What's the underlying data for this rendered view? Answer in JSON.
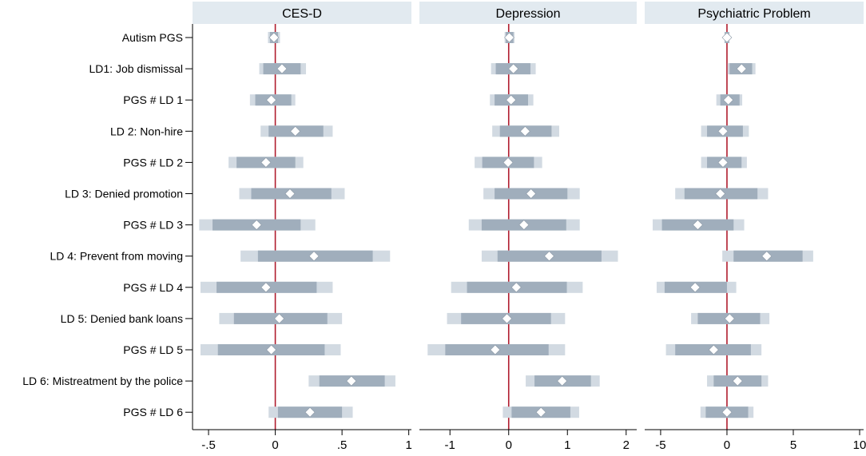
{
  "chart_data": {
    "type": "coefficient-plot",
    "colors": {
      "plot_background": "#ffffff",
      "panel_header": "#e2eaf0",
      "outer_background": "#ffffff",
      "ci_95": "#d2dae2",
      "ci_90": "#a0aebc",
      "marker": "#ffffff",
      "marker_stroke": "#8c99a6",
      "zero_line": "#b01c2e",
      "text": "#000000"
    },
    "rows": [
      "Autism PGS",
      "LD1: Job dismissal",
      "PGS # LD 1",
      "LD 2: Non-hire",
      "PGS # LD 2",
      "LD 3: Denied promotion",
      "PGS # LD 3",
      "LD 4: Prevent from moving",
      "PGS # LD 4",
      "LD 5: Denied bank loans",
      "PGS # LD 5",
      "LD 6: Mistreatment by the police",
      "PGS # LD 6"
    ],
    "panels": [
      {
        "title": "CES-D",
        "xlim": [
          -0.62,
          1.02
        ],
        "ticks": [
          -0.5,
          0,
          0.5,
          1
        ],
        "tick_labels": [
          "-.5",
          "0",
          ".5",
          "1"
        ],
        "estimates": [
          {
            "est": -0.01,
            "ci90": [
              -0.04,
              0.02
            ],
            "ci95": [
              -0.055,
              0.035
            ]
          },
          {
            "est": 0.05,
            "ci90": [
              -0.09,
              0.19
            ],
            "ci95": [
              -0.12,
              0.23
            ]
          },
          {
            "est": -0.03,
            "ci90": [
              -0.15,
              0.12
            ],
            "ci95": [
              -0.19,
              0.15
            ]
          },
          {
            "est": 0.15,
            "ci90": [
              -0.05,
              0.36
            ],
            "ci95": [
              -0.11,
              0.43
            ]
          },
          {
            "est": -0.07,
            "ci90": [
              -0.29,
              0.15
            ],
            "ci95": [
              -0.35,
              0.21
            ]
          },
          {
            "est": 0.11,
            "ci90": [
              -0.18,
              0.42
            ],
            "ci95": [
              -0.27,
              0.52
            ]
          },
          {
            "est": -0.14,
            "ci90": [
              -0.47,
              0.19
            ],
            "ci95": [
              -0.57,
              0.3
            ]
          },
          {
            "est": 0.29,
            "ci90": [
              -0.13,
              0.73
            ],
            "ci95": [
              -0.26,
              0.86
            ]
          },
          {
            "est": -0.07,
            "ci90": [
              -0.44,
              0.31
            ],
            "ci95": [
              -0.56,
              0.43
            ]
          },
          {
            "est": 0.03,
            "ci90": [
              -0.31,
              0.39
            ],
            "ci95": [
              -0.42,
              0.5
            ]
          },
          {
            "est": -0.03,
            "ci90": [
              -0.43,
              0.37
            ],
            "ci95": [
              -0.56,
              0.49
            ]
          },
          {
            "est": 0.57,
            "ci90": [
              0.33,
              0.82
            ],
            "ci95": [
              0.25,
              0.9
            ]
          },
          {
            "est": 0.26,
            "ci90": [
              0.02,
              0.5
            ],
            "ci95": [
              -0.05,
              0.58
            ]
          }
        ]
      },
      {
        "title": "Depression",
        "xlim": [
          -1.52,
          2.18
        ],
        "ticks": [
          -1,
          0,
          1,
          2
        ],
        "tick_labels": [
          "-1",
          "0",
          "1",
          "2"
        ],
        "estimates": [
          {
            "est": 0.01,
            "ci90": [
              -0.05,
              0.08
            ],
            "ci95": [
              -0.07,
              0.1
            ]
          },
          {
            "est": 0.08,
            "ci90": [
              -0.22,
              0.37
            ],
            "ci95": [
              -0.3,
              0.46
            ]
          },
          {
            "est": 0.04,
            "ci90": [
              -0.24,
              0.33
            ],
            "ci95": [
              -0.32,
              0.42
            ]
          },
          {
            "est": 0.28,
            "ci90": [
              -0.15,
              0.73
            ],
            "ci95": [
              -0.28,
              0.86
            ]
          },
          {
            "est": -0.01,
            "ci90": [
              -0.45,
              0.43
            ],
            "ci95": [
              -0.58,
              0.57
            ]
          },
          {
            "est": 0.38,
            "ci90": [
              -0.24,
              1.0
            ],
            "ci95": [
              -0.43,
              1.21
            ]
          },
          {
            "est": 0.26,
            "ci90": [
              -0.46,
              0.98
            ],
            "ci95": [
              -0.68,
              1.21
            ]
          },
          {
            "est": 0.69,
            "ci90": [
              -0.19,
              1.58
            ],
            "ci95": [
              -0.46,
              1.86
            ]
          },
          {
            "est": 0.13,
            "ci90": [
              -0.71,
              0.99
            ],
            "ci95": [
              -0.98,
              1.26
            ]
          },
          {
            "est": -0.03,
            "ci90": [
              -0.81,
              0.72
            ],
            "ci95": [
              -1.05,
              0.96
            ]
          },
          {
            "est": -0.23,
            "ci90": [
              -1.08,
              0.68
            ],
            "ci95": [
              -1.38,
              0.96
            ]
          },
          {
            "est": 0.91,
            "ci90": [
              0.44,
              1.4
            ],
            "ci95": [
              0.29,
              1.55
            ]
          },
          {
            "est": 0.55,
            "ci90": [
              0.05,
              1.05
            ],
            "ci95": [
              -0.1,
              1.2
            ]
          }
        ]
      },
      {
        "title": "Psychiatric Problem",
        "xlim": [
          -6.2,
          10.3
        ],
        "ticks": [
          -5,
          0,
          5,
          10
        ],
        "tick_labels": [
          "-5",
          "0",
          "5",
          "10"
        ],
        "estimates": [
          {
            "est": 0.0,
            "ci90": [
              -0.15,
              0.15
            ],
            "ci95": [
              -0.2,
              0.2
            ]
          },
          {
            "est": 1.1,
            "ci90": [
              0.2,
              1.9
            ],
            "ci95": [
              0.05,
              2.15
            ]
          },
          {
            "est": 0.1,
            "ci90": [
              -0.5,
              0.95
            ],
            "ci95": [
              -0.8,
              1.15
            ]
          },
          {
            "est": -0.3,
            "ci90": [
              -1.5,
              1.2
            ],
            "ci95": [
              -1.95,
              1.65
            ]
          },
          {
            "est": -0.3,
            "ci90": [
              -1.5,
              1.1
            ],
            "ci95": [
              -1.95,
              1.5
            ]
          },
          {
            "est": -0.5,
            "ci90": [
              -3.2,
              2.3
            ],
            "ci95": [
              -3.9,
              3.1
            ]
          },
          {
            "est": -2.2,
            "ci90": [
              -4.9,
              0.5
            ],
            "ci95": [
              -5.6,
              1.3
            ]
          },
          {
            "est": 3.0,
            "ci90": [
              0.5,
              5.7
            ],
            "ci95": [
              -0.35,
              6.5
            ]
          },
          {
            "est": -2.4,
            "ci90": [
              -4.7,
              0.0
            ],
            "ci95": [
              -5.3,
              0.7
            ]
          },
          {
            "est": 0.2,
            "ci90": [
              -2.2,
              2.5
            ],
            "ci95": [
              -2.7,
              3.2
            ]
          },
          {
            "est": -1.0,
            "ci90": [
              -3.9,
              1.8
            ],
            "ci95": [
              -4.6,
              2.6
            ]
          },
          {
            "est": 0.8,
            "ci90": [
              -1.0,
              2.6
            ],
            "ci95": [
              -1.5,
              3.1
            ]
          },
          {
            "est": 0.0,
            "ci90": [
              -1.6,
              1.6
            ],
            "ci95": [
              -2.0,
              2.0
            ]
          }
        ]
      }
    ]
  }
}
